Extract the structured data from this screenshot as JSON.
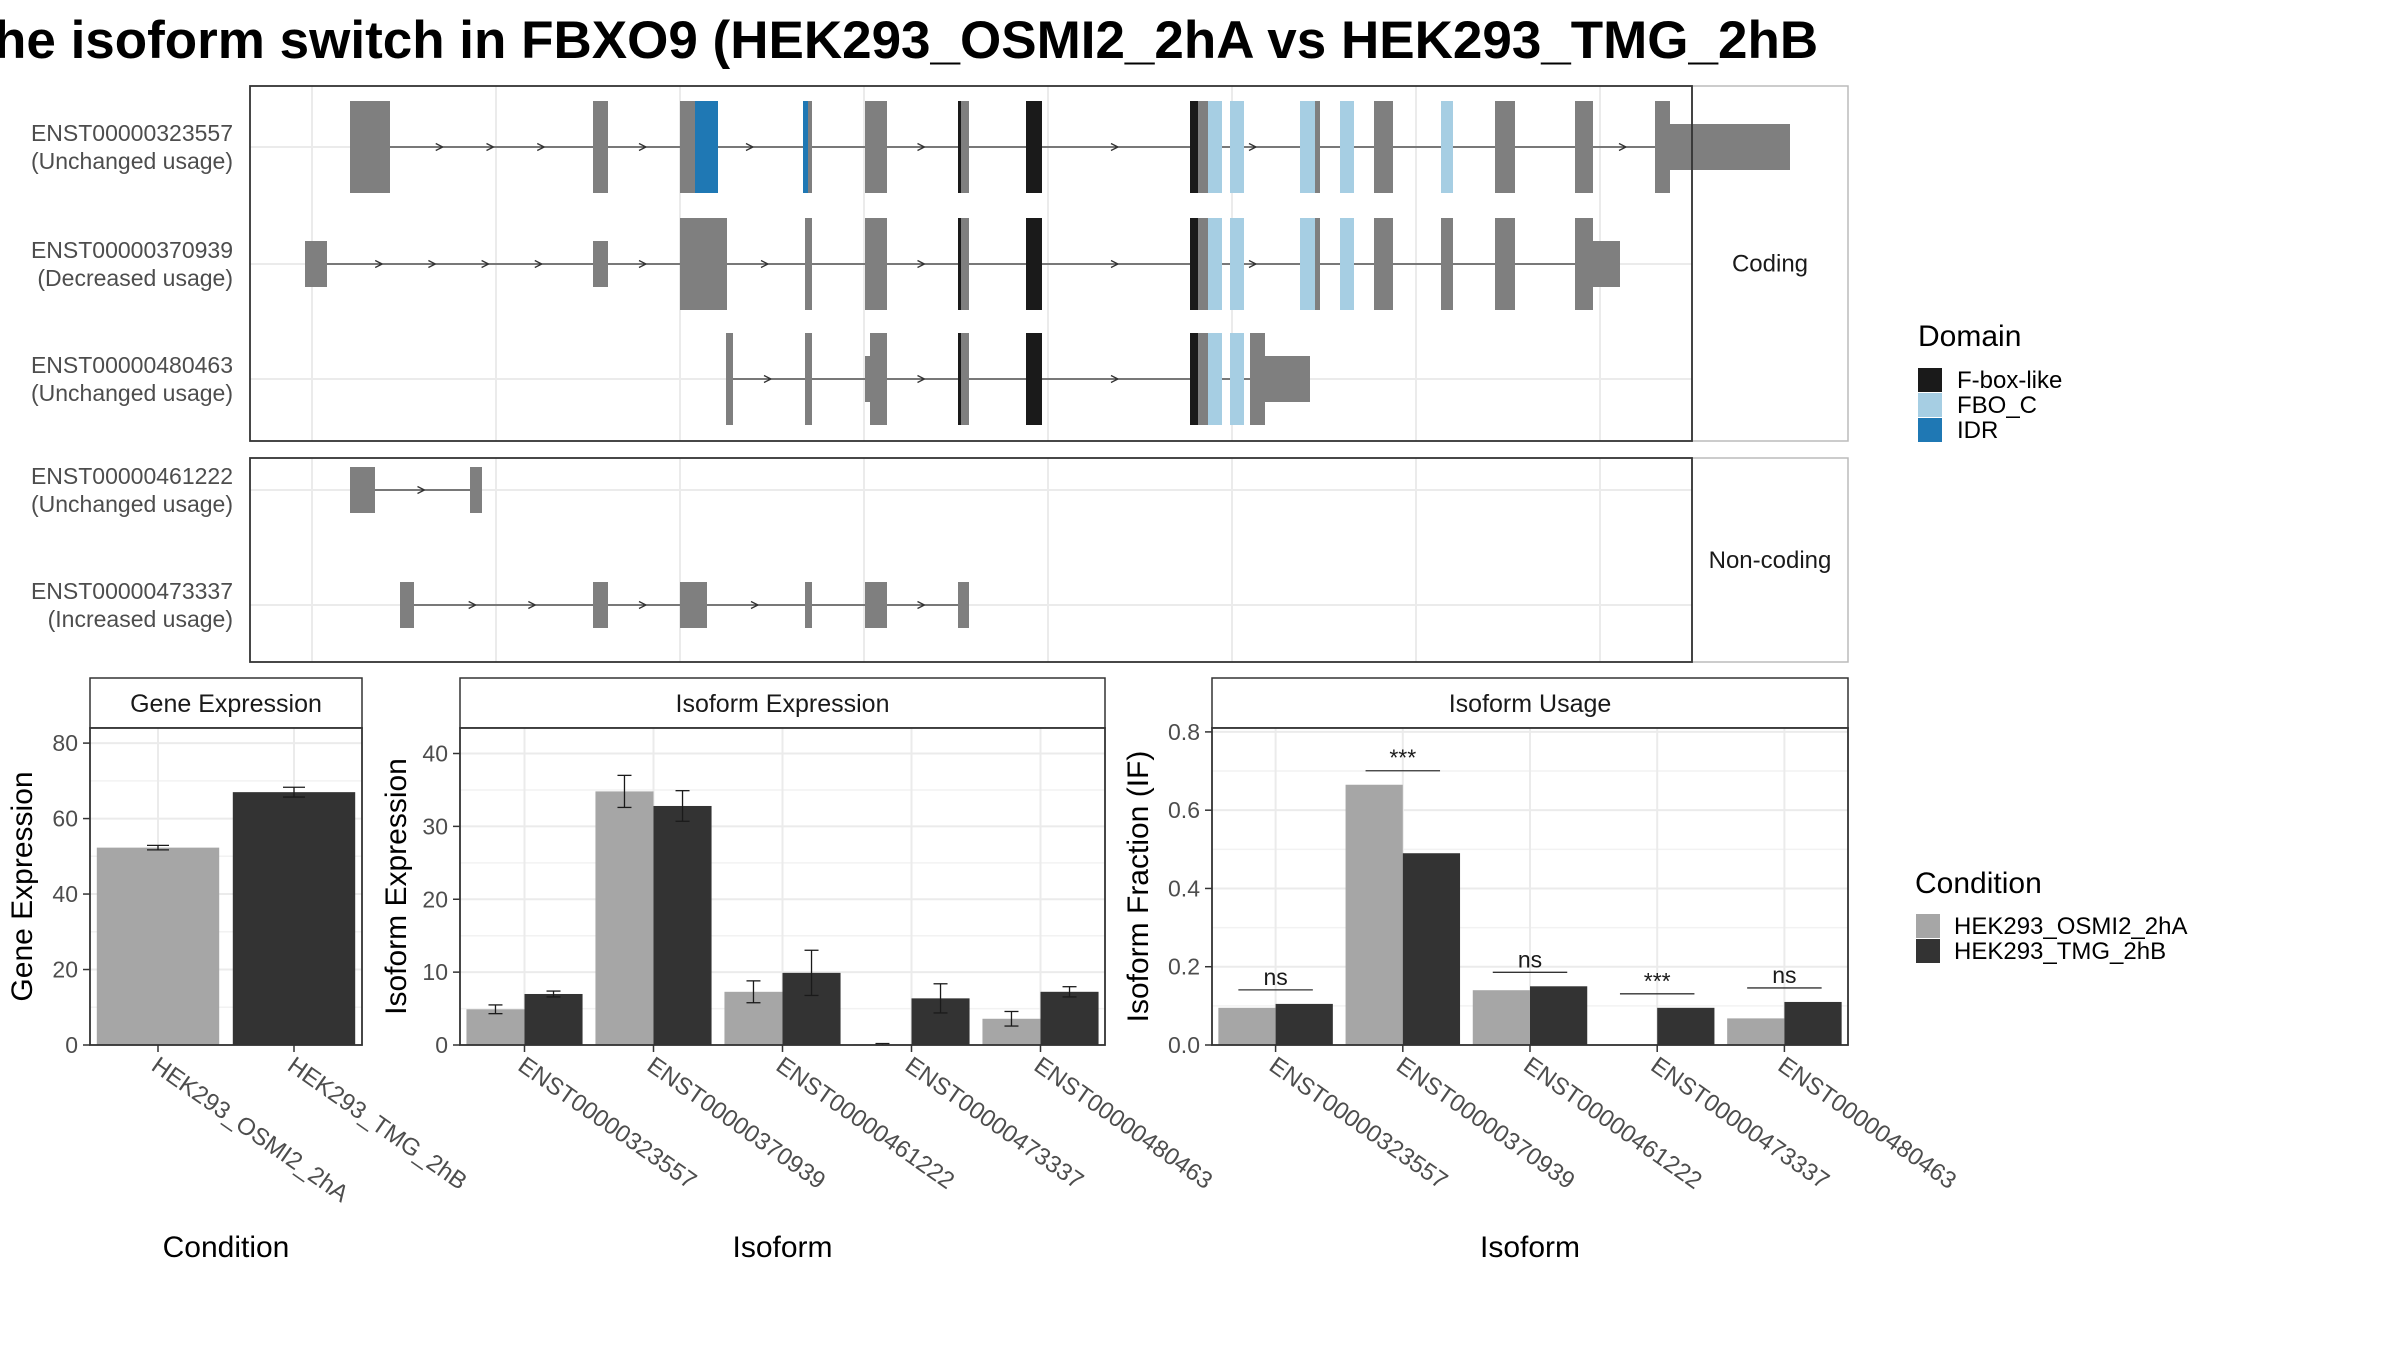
{
  "title": "he isoform switch in FBXO9 (HEK293_OSMI2_2hA vs HEK293_TMG_2hB",
  "colors": {
    "exon": "#7f7f7f",
    "F-box-like": "#1a1a1a",
    "FBO_C": "#a6cee3",
    "IDR": "#1f78b4",
    "HEK293_OSMI2_2hA": "#a6a6a6",
    "HEK293_TMG_2hB": "#333333",
    "grid": "#ebebeb",
    "strip": "#ffffff"
  },
  "chart_data": [
    {
      "type": "other",
      "name": "transcript-structure",
      "panels": [
        {
          "label": "Coding",
          "transcripts": [
            {
              "id": "ENST00000323557",
              "usage": "(Unchanged usage)",
              "exons": [
                [
                  100,
                  140
                ],
                [
                  343,
                  358
                ],
                [
                  430,
                  447
                ],
                [
                  555,
                  562
                ],
                [
                  615,
                  637
                ],
                [
                  708,
                  719
                ],
                [
                  776,
                  792
                ],
                [
                  940,
                  958
                ],
                [
                  1050,
                  1070
                ],
                [
                  1124,
                  1143
                ],
                [
                  1191,
                  1203
                ],
                [
                  1245,
                  1265
                ],
                [
                  1325,
                  1343
                ],
                [
                  1405,
                  1540
                ]
              ],
              "cds": [
                [
                  100,
                  140
                ],
                [
                  343,
                  358
                ],
                [
                  430,
                  447
                ],
                [
                  555,
                  562
                ],
                [
                  615,
                  637
                ],
                [
                  708,
                  719
                ],
                [
                  776,
                  792
                ],
                [
                  940,
                  958
                ],
                [
                  1050,
                  1070
                ],
                [
                  1124,
                  1143
                ],
                [
                  1191,
                  1203
                ],
                [
                  1245,
                  1265
                ],
                [
                  1325,
                  1343
                ],
                [
                  1405,
                  1420
                ]
              ],
              "domains": [
                {
                  "name": "IDR",
                  "start": 445,
                  "end": 468
                },
                {
                  "name": "IDR",
                  "start": 553,
                  "end": 558
                },
                {
                  "name": "F-box-like",
                  "start": 708,
                  "end": 711
                },
                {
                  "name": "F-box-like",
                  "start": 776,
                  "end": 792
                },
                {
                  "name": "F-box-like",
                  "start": 940,
                  "end": 948
                },
                {
                  "name": "FBO_C",
                  "start": 958,
                  "end": 972
                },
                {
                  "name": "FBO_C",
                  "start": 980,
                  "end": 994
                },
                {
                  "name": "FBO_C",
                  "start": 1050,
                  "end": 1065
                },
                {
                  "name": "FBO_C",
                  "start": 1090,
                  "end": 1104
                },
                {
                  "name": "FBO_C",
                  "start": 1191,
                  "end": 1203
                }
              ]
            },
            {
              "id": "ENST00000370939",
              "usage": "(Decreased usage)",
              "exons": [
                [
                  55,
                  77
                ],
                [
                  343,
                  358
                ],
                [
                  430,
                  477
                ],
                [
                  555,
                  562
                ],
                [
                  615,
                  637
                ],
                [
                  708,
                  719
                ],
                [
                  776,
                  792
                ],
                [
                  940,
                  958
                ],
                [
                  1050,
                  1070
                ],
                [
                  1124,
                  1143
                ],
                [
                  1191,
                  1203
                ],
                [
                  1245,
                  1265
                ],
                [
                  1325,
                  1370
                ]
              ],
              "cds": [
                [
                  430,
                  477
                ],
                [
                  555,
                  562
                ],
                [
                  615,
                  637
                ],
                [
                  708,
                  719
                ],
                [
                  776,
                  792
                ],
                [
                  940,
                  958
                ],
                [
                  1050,
                  1070
                ],
                [
                  1124,
                  1143
                ],
                [
                  1191,
                  1203
                ],
                [
                  1245,
                  1265
                ],
                [
                  1325,
                  1343
                ]
              ],
              "domains": [
                {
                  "name": "F-box-like",
                  "start": 708,
                  "end": 711
                },
                {
                  "name": "F-box-like",
                  "start": 776,
                  "end": 792
                },
                {
                  "name": "F-box-like",
                  "start": 940,
                  "end": 948
                },
                {
                  "name": "FBO_C",
                  "start": 958,
                  "end": 972
                },
                {
                  "name": "FBO_C",
                  "start": 980,
                  "end": 994
                },
                {
                  "name": "FBO_C",
                  "start": 1050,
                  "end": 1065
                },
                {
                  "name": "FBO_C",
                  "start": 1090,
                  "end": 1104
                }
              ]
            },
            {
              "id": "ENST00000480463",
              "usage": "(Unchanged usage)",
              "exons": [
                [
                  476,
                  483
                ],
                [
                  555,
                  562
                ],
                [
                  615,
                  637
                ],
                [
                  708,
                  719
                ],
                [
                  776,
                  792
                ],
                [
                  940,
                  958
                ],
                [
                  1000,
                  1060
                ]
              ],
              "cds": [
                [
                  476,
                  483
                ],
                [
                  555,
                  562
                ],
                [
                  620,
                  637
                ],
                [
                  708,
                  719
                ],
                [
                  776,
                  792
                ],
                [
                  940,
                  958
                ],
                [
                  1000,
                  1015
                ]
              ],
              "domains": [
                {
                  "name": "F-box-like",
                  "start": 708,
                  "end": 711
                },
                {
                  "name": "F-box-like",
                  "start": 776,
                  "end": 792
                },
                {
                  "name": "F-box-like",
                  "start": 940,
                  "end": 948
                },
                {
                  "name": "FBO_C",
                  "start": 958,
                  "end": 972
                },
                {
                  "name": "FBO_C",
                  "start": 980,
                  "end": 994
                }
              ]
            }
          ]
        },
        {
          "label": "Non-coding",
          "transcripts": [
            {
              "id": "ENST00000461222",
              "usage": "(Unchanged usage)",
              "exons": [
                [
                  100,
                  125
                ],
                [
                  220,
                  232
                ]
              ],
              "cds": [],
              "domains": []
            },
            {
              "id": "ENST00000473337",
              "usage": "(Increased usage)",
              "exons": [
                [
                  150,
                  164
                ],
                [
                  343,
                  358
                ],
                [
                  430,
                  457
                ],
                [
                  555,
                  562
                ],
                [
                  615,
                  637
                ],
                [
                  708,
                  719
                ]
              ],
              "cds": [],
              "domains": []
            }
          ]
        }
      ]
    },
    {
      "type": "bar",
      "strip": "Gene Expression",
      "xlabel": "Condition",
      "ylabel": "Gene Expression",
      "ylim": [
        0,
        84
      ],
      "yticks": [
        0,
        20,
        40,
        60,
        80
      ],
      "categories": [
        "HEK293_OSMI2_2hA",
        "HEK293_TMG_2hB"
      ],
      "values": [
        52.3,
        67.0
      ],
      "errors": [
        0.6,
        1.3
      ]
    },
    {
      "type": "bar",
      "strip": "Isoform Expression",
      "xlabel": "Isoform",
      "ylabel": "Isoform Expression",
      "ylim": [
        0,
        43.5
      ],
      "yticks": [
        0,
        10,
        20,
        30,
        40
      ],
      "categories": [
        "ENST00000323557",
        "ENST00000370939",
        "ENST00000461222",
        "ENST00000473337",
        "ENST00000480463"
      ],
      "series": [
        {
          "name": "HEK293_OSMI2_2hA",
          "values": [
            4.9,
            34.8,
            7.3,
            0.1,
            3.6
          ],
          "errors": [
            0.6,
            2.2,
            1.5,
            0.1,
            1.0
          ]
        },
        {
          "name": "HEK293_TMG_2hB",
          "values": [
            7.0,
            32.8,
            9.9,
            6.4,
            7.3
          ],
          "errors": [
            0.4,
            2.1,
            3.1,
            2.0,
            0.7
          ]
        }
      ]
    },
    {
      "type": "bar",
      "strip": "Isoform Usage",
      "xlabel": "Isoform",
      "ylabel": "Isoform Fraction (IF)",
      "ylim": [
        0,
        0.81
      ],
      "yticks": [
        0.0,
        0.2,
        0.4,
        0.6,
        0.8
      ],
      "ytick_labels": [
        "0.0",
        "0.2",
        "0.4",
        "0.6",
        "0.8"
      ],
      "categories": [
        "ENST00000323557",
        "ENST00000370939",
        "ENST00000461222",
        "ENST00000473337",
        "ENST00000480463"
      ],
      "series": [
        {
          "name": "HEK293_OSMI2_2hA",
          "values": [
            0.095,
            0.665,
            0.14,
            0.0,
            0.068
          ]
        },
        {
          "name": "HEK293_TMG_2hB",
          "values": [
            0.105,
            0.49,
            0.15,
            0.095,
            0.11
          ]
        }
      ],
      "significance": [
        "ns",
        "***",
        "ns",
        "***",
        "ns"
      ]
    }
  ],
  "legend_domain": {
    "title": "Domain",
    "items": [
      "F-box-like",
      "FBO_C",
      "IDR"
    ]
  },
  "legend_condition": {
    "title": "Condition",
    "items": [
      "HEK293_OSMI2_2hA",
      "HEK293_TMG_2hB"
    ]
  }
}
